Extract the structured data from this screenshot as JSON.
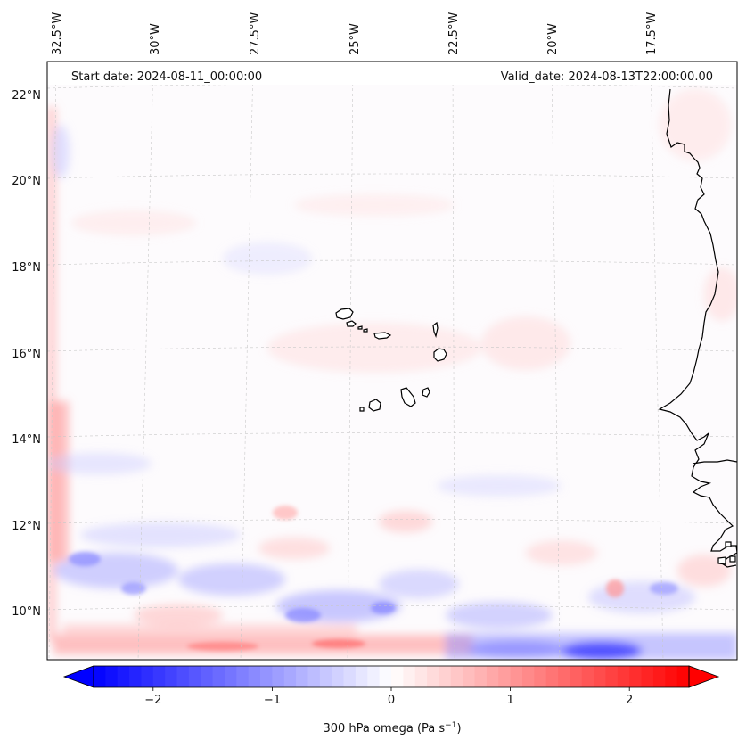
{
  "map": {
    "start_date": "Start date: 2024-08-11_00:00:00",
    "valid_date": "Valid_date: 2024-08-13T22:00:00.00",
    "lon_labels": [
      "32.5°W",
      "30°W",
      "27.5°W",
      "25°W",
      "22.5°W",
      "20°W",
      "17.5°W"
    ],
    "lat_labels": [
      "22°N",
      "20°N",
      "18°N",
      "16°N",
      "14°N",
      "12°N",
      "10°N"
    ]
  },
  "colorbar": {
    "ticks": [
      "−2",
      "−1",
      "0",
      "1",
      "2"
    ],
    "tick_values": [
      -2,
      -1,
      0,
      1,
      2
    ],
    "vmin": -2.5,
    "vmax": 2.5,
    "label_main": "300 hPa omega (Pa s",
    "label_sup": "−1",
    "label_end": ")",
    "neg_color": "#0000ff",
    "mid_color": "#ffffff",
    "pos_color": "#ff0000"
  },
  "colors": {
    "coastline": "#000000",
    "gridline": "#c8c8c8",
    "field_pos": "#ff7a7a",
    "field_neg": "#7a7aff"
  }
}
